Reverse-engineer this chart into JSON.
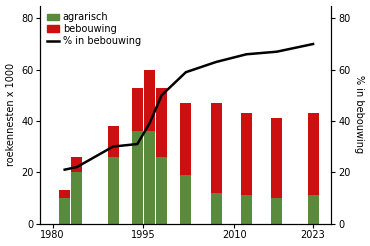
{
  "years": [
    1982,
    1984,
    1990,
    1994,
    1996,
    1998,
    2002,
    2007,
    2012,
    2017,
    2023
  ],
  "agrarisch": [
    10,
    20,
    26,
    36,
    36,
    26,
    19,
    12,
    11,
    10,
    11
  ],
  "bebouwing": [
    3,
    6,
    12,
    17,
    24,
    27,
    28,
    35,
    32,
    31,
    32
  ],
  "pct_bebouwing": [
    21,
    22,
    30,
    31,
    39,
    50,
    59,
    63,
    66,
    67,
    70
  ],
  "bar_width": 1.8,
  "agrarisch_color": "#5a8a3c",
  "bebouwing_color": "#cc1010",
  "line_color": "#000000",
  "ylim_left": [
    0,
    85
  ],
  "ylim_right": [
    0,
    85
  ],
  "yticks_left": [
    0,
    20,
    40,
    60,
    80
  ],
  "yticks_right": [
    0,
    20,
    40,
    60,
    80
  ],
  "xlim": [
    1978,
    2026
  ],
  "xticks": [
    1980,
    1995,
    2010,
    2023
  ],
  "xlabel": "",
  "ylabel_left": "roekennesten x 1000",
  "ylabel_right": "% in bebouwing",
  "legend_labels": [
    "agrarisch",
    "bebouwing",
    "% in bebouwing"
  ],
  "background_color": "#ffffff",
  "axis_fontsize": 7,
  "tick_fontsize": 7,
  "legend_fontsize": 7
}
